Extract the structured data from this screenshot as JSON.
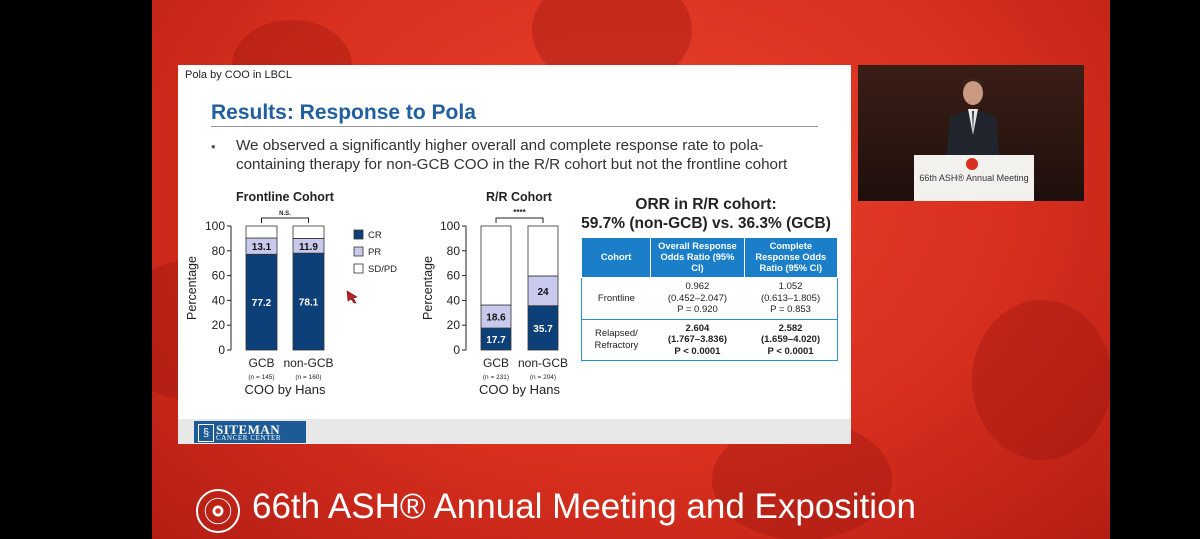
{
  "slide": {
    "header": "Pola by COO in LBCL",
    "title": "Results: Response to Pola",
    "bullet_line1": "We observed a significantly higher overall and complete response rate to pola-",
    "bullet_line2": "containing therapy for non-GCB COO in the R/R cohort but not the frontline cohort",
    "bullet_marker": "•"
  },
  "chart_data": [
    {
      "type": "bar",
      "stacked": true,
      "title": "Frontline Cohort",
      "categories": [
        "GCB",
        "non-GCB"
      ],
      "category_n": [
        "(n = 145)",
        "(n = 160)"
      ],
      "series": [
        {
          "name": "CR",
          "values": [
            77.2,
            78.1
          ],
          "color": "#0d3f78",
          "label_color": "#ffffff"
        },
        {
          "name": "PR",
          "values": [
            13.1,
            11.9
          ],
          "color": "#c9c9ee",
          "label_color": "#111111"
        },
        {
          "name": "SD/PD",
          "values": [
            9.7,
            10.0
          ],
          "color": "#ffffff",
          "label_color": "#111111"
        }
      ],
      "labeled_series": [
        "CR",
        "PR"
      ],
      "significance": "N.S.",
      "ylabel": "Percentage",
      "xlabel": "COO by Hans",
      "yticks": [
        0,
        20,
        40,
        60,
        80,
        100
      ],
      "ylim": [
        0,
        100
      ],
      "legend": "right"
    },
    {
      "type": "bar",
      "stacked": true,
      "title": "R/R Cohort",
      "categories": [
        "GCB",
        "non-GCB"
      ],
      "category_n": [
        "(n = 231)",
        "(n = 204)"
      ],
      "series": [
        {
          "name": "CR",
          "values": [
            17.7,
            35.7
          ],
          "color": "#0d3f78",
          "label_color": "#ffffff"
        },
        {
          "name": "PR",
          "values": [
            18.6,
            24.0
          ],
          "color": "#c9c9ee",
          "label_color": "#111111"
        },
        {
          "name": "SD/PD",
          "values": [
            63.7,
            40.3
          ],
          "color": "#ffffff",
          "label_color": "#111111"
        }
      ],
      "labeled_series": [
        "CR",
        "PR"
      ],
      "significance": "****",
      "ylabel": "Percentage",
      "xlabel": "COO by Hans",
      "yticks": [
        0,
        20,
        40,
        60,
        80,
        100
      ],
      "ylim": [
        0,
        100
      ]
    }
  ],
  "orr": {
    "title_line1": "ORR in R/R cohort:",
    "title_line2": "59.7% (non-GCB) vs. 36.3% (GCB)",
    "headers": [
      "Cohort",
      "Overall Response Odds Ratio (95% CI)",
      "Complete Response Odds Ratio (95% CI)"
    ],
    "rows": [
      {
        "cohort": "Frontline",
        "or": "0.962",
        "or_ci": "(0.452–2.047)",
        "or_p": "P = 0.920",
        "cr": "1.052",
        "cr_ci": "(0.613–1.805)",
        "cr_p": "P = 0.853"
      },
      {
        "cohort_line1": "Relapsed/",
        "cohort_line2": "Refractory",
        "or": "2.604",
        "or_ci": "(1.767–3.836)",
        "or_p": "P < 0.0001",
        "cr": "2.582",
        "cr_ci": "(1.659–4.020)",
        "cr_p": "P < 0.0001"
      }
    ]
  },
  "logo": {
    "name": "SITEMAN",
    "subtitle": "CANCER CENTER"
  },
  "camera": {
    "podium_label": "66th ASH® Annual Meeting"
  },
  "footer": {
    "title": "66th ASH® Annual Meeting and Exposition"
  },
  "colors": {
    "background_red": "#d9301f",
    "slide_title_blue": "#1f5fa0",
    "table_header_blue": "#1a7fc8"
  }
}
